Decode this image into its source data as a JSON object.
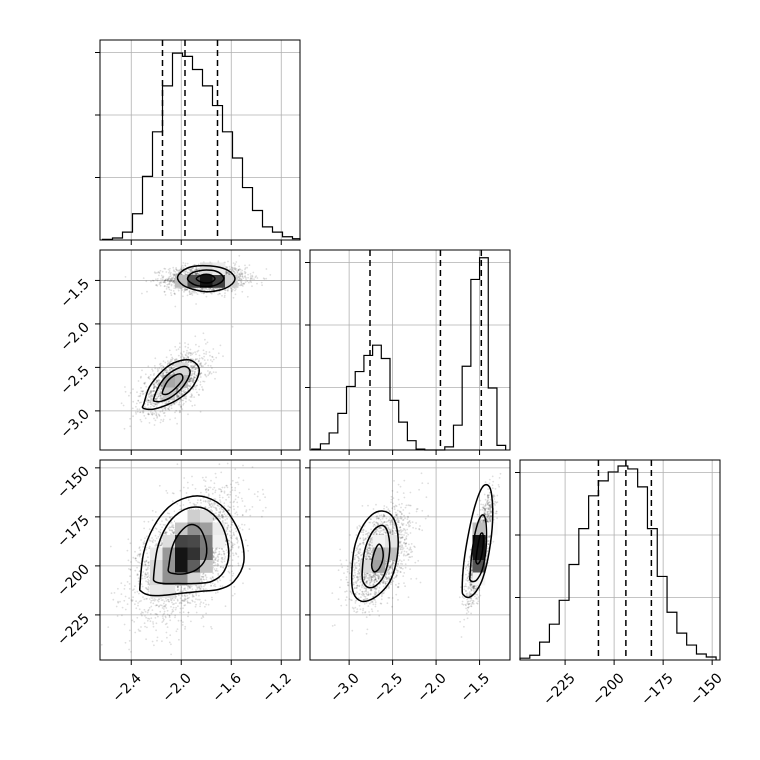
{
  "chart_data": {
    "type": "corner",
    "grid": true,
    "parameters": [
      {
        "index": 0,
        "range": [
          -2.65,
          -1.05
        ],
        "ticks": [
          "−2.4",
          "−2.0",
          "−1.6",
          "−1.2"
        ],
        "tick_values": [
          -2.4,
          -2.0,
          -1.6,
          -1.2
        ],
        "quantiles": [
          -2.15,
          -1.97,
          -1.71
        ],
        "histogram": {
          "bins": [
            {
              "x0": -2.63,
              "x1": -2.55,
              "count": 0.01
            },
            {
              "x0": -2.55,
              "x1": -2.47,
              "count": 0.03
            },
            {
              "x0": -2.47,
              "x1": -2.39,
              "count": 0.12
            },
            {
              "x0": -2.39,
              "x1": -2.31,
              "count": 0.4
            },
            {
              "x0": -2.31,
              "x1": -2.23,
              "count": 0.97
            },
            {
              "x0": -2.23,
              "x1": -2.15,
              "count": 1.65
            },
            {
              "x0": -2.15,
              "x1": -2.07,
              "count": 2.35
            },
            {
              "x0": -2.07,
              "x1": -1.99,
              "count": 2.85
            },
            {
              "x0": -1.99,
              "x1": -1.91,
              "count": 2.8
            },
            {
              "x0": -1.91,
              "x1": -1.83,
              "count": 2.6
            },
            {
              "x0": -1.83,
              "x1": -1.75,
              "count": 2.35
            },
            {
              "x0": -1.75,
              "x1": -1.67,
              "count": 2.05
            },
            {
              "x0": -1.67,
              "x1": -1.59,
              "count": 1.65
            },
            {
              "x0": -1.59,
              "x1": -1.51,
              "count": 1.25
            },
            {
              "x0": -1.51,
              "x1": -1.43,
              "count": 0.8
            },
            {
              "x0": -1.43,
              "x1": -1.35,
              "count": 0.45
            },
            {
              "x0": -1.35,
              "x1": -1.27,
              "count": 0.2
            },
            {
              "x0": -1.27,
              "x1": -1.19,
              "count": 0.12
            },
            {
              "x0": -1.19,
              "x1": -1.11,
              "count": 0.05
            },
            {
              "x0": -1.11,
              "x1": -1.05,
              "count": 0.02
            }
          ],
          "ymax": 3.05
        }
      },
      {
        "index": 1,
        "range": [
          -3.45,
          -1.15
        ],
        "ticks": [
          "−3.0",
          "−2.5",
          "−2.0",
          "−1.5"
        ],
        "tick_values": [
          -3.0,
          -2.5,
          -2.0,
          -1.5
        ],
        "quantiles": [
          -2.76,
          -1.95,
          -1.48
        ],
        "histogram": {
          "bins": [
            {
              "x0": -3.43,
              "x1": -3.33,
              "count": 0.03
            },
            {
              "x0": -3.33,
              "x1": -3.23,
              "count": 0.2
            },
            {
              "x0": -3.23,
              "x1": -3.13,
              "count": 0.55
            },
            {
              "x0": -3.13,
              "x1": -3.03,
              "count": 1.18
            },
            {
              "x0": -3.03,
              "x1": -2.93,
              "count": 2.05
            },
            {
              "x0": -2.93,
              "x1": -2.83,
              "count": 2.53
            },
            {
              "x0": -2.83,
              "x1": -2.73,
              "count": 3.05
            },
            {
              "x0": -2.73,
              "x1": -2.63,
              "count": 3.38
            },
            {
              "x0": -2.63,
              "x1": -2.53,
              "count": 2.95
            },
            {
              "x0": -2.53,
              "x1": -2.43,
              "count": 1.6
            },
            {
              "x0": -2.43,
              "x1": -2.33,
              "count": 0.9
            },
            {
              "x0": -2.33,
              "x1": -2.23,
              "count": 0.3
            },
            {
              "x0": -2.23,
              "x1": -2.13,
              "count": 0.03
            },
            {
              "x0": -1.9,
              "x1": -1.8,
              "count": 0.1
            },
            {
              "x0": -1.8,
              "x1": -1.7,
              "count": 0.8
            },
            {
              "x0": -1.7,
              "x1": -1.6,
              "count": 2.7
            },
            {
              "x0": -1.6,
              "x1": -1.5,
              "count": 5.5
            },
            {
              "x0": -1.5,
              "x1": -1.4,
              "count": 6.2
            },
            {
              "x0": -1.4,
              "x1": -1.3,
              "count": 2.0
            },
            {
              "x0": -1.3,
              "x1": -1.2,
              "count": 0.15
            }
          ],
          "ymax": 6.45
        }
      },
      {
        "index": 2,
        "range": [
          -248,
          -146
        ],
        "ticks": [
          "−225",
          "−200",
          "−175",
          "−150"
        ],
        "tick_values": [
          -225,
          -200,
          -175,
          -150
        ],
        "quantiles": [
          -208,
          -194,
          -181
        ],
        "histogram": {
          "bins": [
            {
              "x0": -248,
              "x1": -243,
              "count": 0.03
            },
            {
              "x0": -243,
              "x1": -238,
              "count": 0.08
            },
            {
              "x0": -238,
              "x1": -233,
              "count": 0.3
            },
            {
              "x0": -233,
              "x1": -228,
              "count": 0.6
            },
            {
              "x0": -228,
              "x1": -223,
              "count": 1.0
            },
            {
              "x0": -223,
              "x1": -218,
              "count": 1.6
            },
            {
              "x0": -218,
              "x1": -213,
              "count": 2.2
            },
            {
              "x0": -213,
              "x1": -208,
              "count": 2.75
            },
            {
              "x0": -208,
              "x1": -203,
              "count": 3.0
            },
            {
              "x0": -203,
              "x1": -198,
              "count": 3.15
            },
            {
              "x0": -198,
              "x1": -193,
              "count": 3.25
            },
            {
              "x0": -193,
              "x1": -188,
              "count": 3.2
            },
            {
              "x0": -188,
              "x1": -183,
              "count": 2.9
            },
            {
              "x0": -183,
              "x1": -178,
              "count": 2.2
            },
            {
              "x0": -178,
              "x1": -173,
              "count": 1.4
            },
            {
              "x0": -173,
              "x1": -168,
              "count": 0.8
            },
            {
              "x0": -168,
              "x1": -163,
              "count": 0.45
            },
            {
              "x0": -163,
              "x1": -158,
              "count": 0.25
            },
            {
              "x0": -158,
              "x1": -153,
              "count": 0.1
            },
            {
              "x0": -153,
              "x1": -148,
              "count": 0.05
            }
          ],
          "ymax": 3.35
        }
      }
    ],
    "pairs": [
      {
        "x_param": 0,
        "y_param": 1,
        "modes": [
          {
            "cx": -1.8,
            "cy": -1.48,
            "sx": 0.16,
            "sy": 0.075,
            "rho": 0.05,
            "weight": 0.55
          },
          {
            "cx": -2.06,
            "cy": -2.68,
            "sx": 0.13,
            "sy": 0.17,
            "rho": 0.55,
            "weight": 0.45
          }
        ],
        "contours": [
          {
            "x": [
              -2.03,
              -1.99,
              -1.91,
              -1.8,
              -1.69,
              -1.61,
              -1.57,
              -1.61,
              -1.69,
              -1.8,
              -1.91,
              -1.99
            ],
            "y": [
              -1.47,
              -1.39,
              -1.34,
              -1.33,
              -1.35,
              -1.4,
              -1.48,
              -1.56,
              -1.61,
              -1.63,
              -1.6,
              -1.55
            ]
          },
          {
            "x": [
              -1.95,
              -1.92,
              -1.86,
              -1.8,
              -1.73,
              -1.68,
              -1.66,
              -1.69,
              -1.74,
              -1.8,
              -1.87,
              -1.92
            ],
            "y": [
              -1.48,
              -1.42,
              -1.39,
              -1.38,
              -1.39,
              -1.43,
              -1.48,
              -1.53,
              -1.56,
              -1.57,
              -1.56,
              -1.53
            ]
          },
          {
            "x": [
              -1.88,
              -1.84,
              -1.8,
              -1.76,
              -1.73,
              -1.76,
              -1.8,
              -1.84
            ],
            "y": [
              -1.48,
              -1.44,
              -1.43,
              -1.44,
              -1.48,
              -1.52,
              -1.53,
              -1.52
            ]
          },
          {
            "x": [
              -2.3,
              -2.26,
              -2.19,
              -2.1,
              -2.0,
              -1.92,
              -1.86,
              -1.87,
              -1.93,
              -2.03,
              -2.13,
              -2.22,
              -2.28,
              -2.31
            ],
            "y": [
              -2.92,
              -2.74,
              -2.6,
              -2.48,
              -2.42,
              -2.42,
              -2.5,
              -2.62,
              -2.76,
              -2.87,
              -2.94,
              -2.98,
              -2.98,
              -2.96
            ]
          },
          {
            "x": [
              -2.22,
              -2.18,
              -2.12,
              -2.04,
              -1.97,
              -1.93,
              -1.95,
              -2.01,
              -2.09,
              -2.16,
              -2.21
            ],
            "y": [
              -2.86,
              -2.72,
              -2.6,
              -2.52,
              -2.49,
              -2.54,
              -2.64,
              -2.76,
              -2.85,
              -2.89,
              -2.89
            ]
          },
          {
            "x": [
              -2.15,
              -2.11,
              -2.05,
              -2.0,
              -1.99,
              -2.04,
              -2.1,
              -2.14
            ],
            "y": [
              -2.78,
              -2.66,
              -2.59,
              -2.58,
              -2.64,
              -2.73,
              -2.8,
              -2.81
            ]
          }
        ],
        "x_ticks": [
          "−2.4",
          "−2.0",
          "−1.6",
          "−1.2"
        ],
        "y_ticks": [
          "−1.5",
          "−2.0",
          "−2.5",
          "−3.0"
        ]
      },
      {
        "x_param": 0,
        "y_param": 2,
        "modes": [
          {
            "cx": -1.95,
            "cy": -194,
            "sx": 0.19,
            "sy": 15,
            "rho": 0.5,
            "weight": 1.0
          }
        ],
        "contours": [
          {
            "x": [
              -2.33,
              -2.3,
              -2.22,
              -2.1,
              -1.95,
              -1.8,
              -1.65,
              -1.53,
              -1.5,
              -1.58,
              -1.7,
              -1.85,
              -2.0,
              -2.14,
              -2.25,
              -2.32
            ],
            "y": [
              -210,
              -193,
              -180,
              -170,
              -165,
              -165,
              -171,
              -184,
              -198,
              -208,
              -212,
              -213,
              -214,
              -215,
              -215,
              -213
            ]
          },
          {
            "x": [
              -2.22,
              -2.19,
              -2.12,
              -2.02,
              -1.9,
              -1.78,
              -1.67,
              -1.62,
              -1.66,
              -1.76,
              -1.9,
              -2.03,
              -2.14,
              -2.21
            ],
            "y": [
              -205,
              -191,
              -180,
              -173,
              -170,
              -172,
              -180,
              -193,
              -203,
              -208,
              -209,
              -209,
              -209,
              -208
            ]
          },
          {
            "x": [
              -2.1,
              -2.07,
              -2.01,
              -1.93,
              -1.85,
              -1.8,
              -1.81,
              -1.88,
              -1.97,
              -2.05,
              -2.1
            ],
            "y": [
              -200,
              -190,
              -183,
              -179,
              -181,
              -189,
              -197,
              -202,
              -204,
              -204,
              -203
            ]
          }
        ],
        "x_ticks": [
          "−2.4",
          "−2.0",
          "−1.6",
          "−1.2"
        ],
        "y_ticks": [
          "−150",
          "−175",
          "−200",
          "−225"
        ]
      },
      {
        "x_param": 1,
        "y_param": 2,
        "modes": [
          {
            "cx": -2.64,
            "cy": -195,
            "sx": 0.17,
            "sy": 12,
            "rho": 0.5,
            "weight": 0.55
          },
          {
            "cx": -1.49,
            "cy": -191,
            "sx": 0.075,
            "sy": 13,
            "rho": 0.8,
            "weight": 0.45
          }
        ],
        "contours": [
          {
            "x": [
              -2.97,
              -2.94,
              -2.86,
              -2.74,
              -2.62,
              -2.5,
              -2.44,
              -2.45,
              -2.52,
              -2.62,
              -2.74,
              -2.86,
              -2.95
            ],
            "y": [
              -205,
              -191,
              -181,
              -174,
              -172,
              -175,
              -184,
              -196,
              -207,
              -213,
              -217,
              -218,
              -214
            ]
          },
          {
            "x": [
              -2.85,
              -2.82,
              -2.75,
              -2.67,
              -2.59,
              -2.54,
              -2.54,
              -2.6,
              -2.69,
              -2.78,
              -2.84
            ],
            "y": [
              -203,
              -192,
              -184,
              -180,
              -180,
              -186,
              -195,
              -205,
              -210,
              -211,
              -208
            ]
          },
          {
            "x": [
              -2.74,
              -2.71,
              -2.66,
              -2.62,
              -2.61,
              -2.65,
              -2.7,
              -2.73
            ],
            "y": [
              -199,
              -193,
              -189,
              -191,
              -196,
              -201,
              -203,
              -202
            ]
          },
          {
            "x": [
              -1.7,
              -1.68,
              -1.62,
              -1.55,
              -1.47,
              -1.4,
              -1.36,
              -1.35,
              -1.39,
              -1.46,
              -1.54,
              -1.62,
              -1.68
            ],
            "y": [
              -212,
              -198,
              -182,
              -169,
              -160,
              -159,
              -164,
              -177,
              -193,
              -206,
              -213,
              -216,
              -215
            ]
          },
          {
            "x": [
              -1.61,
              -1.59,
              -1.55,
              -1.49,
              -1.44,
              -1.42,
              -1.43,
              -1.47,
              -1.53,
              -1.58,
              -1.61
            ],
            "y": [
              -205,
              -194,
              -183,
              -175,
              -175,
              -183,
              -193,
              -202,
              -207,
              -208,
              -207
            ]
          },
          {
            "x": [
              -1.54,
              -1.52,
              -1.49,
              -1.46,
              -1.46,
              -1.49,
              -1.52,
              -1.54
            ],
            "y": [
              -196,
              -190,
              -184,
              -184,
              -190,
              -197,
              -199,
              -198
            ]
          }
        ],
        "x_ticks": [
          "−3.0",
          "−2.5",
          "−2.0",
          "−1.5"
        ],
        "y_ticks": [
          "−150",
          "−175",
          "−200",
          "−225"
        ]
      }
    ]
  }
}
